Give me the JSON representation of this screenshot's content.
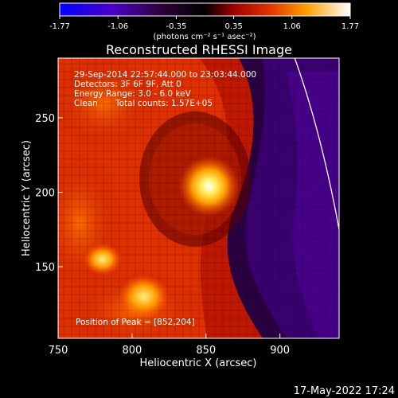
{
  "chart_data": {
    "type": "heatmap",
    "title": "Reconstructed RHESSI Image",
    "xlabel": "Heliocentric X (arcsec)",
    "ylabel": "Heliocentric Y (arcsec)",
    "xlim": [
      750,
      940
    ],
    "ylim": [
      102,
      290
    ],
    "x_ticks": [
      "750",
      "800",
      "850",
      "900"
    ],
    "y_ticks": [
      "150",
      "200",
      "250"
    ],
    "colorbar": {
      "tick_labels": [
        "-1.77",
        "-1.06",
        "-0.35",
        "0.35",
        "1.06",
        "1.77"
      ],
      "range": [
        -1.77,
        1.77
      ],
      "unit": "(photons cm⁻² s⁻¹ asec⁻²)"
    },
    "annotations": {
      "time": "29-Sep-2014 22:57:44.000 to 23:03:44.000",
      "detectors": "Detectors: 3F 6F 9F, Att 0",
      "energy": "Energy Range: 3.0 - 6.0 keV",
      "method": "Clean",
      "counts": "Total counts: 1.57E+05",
      "peak": "Position of Peak = [852,204]"
    },
    "peak": [
      852,
      204
    ],
    "secondary_sources": [
      [
        808,
        130
      ],
      [
        780,
        155
      ]
    ],
    "limb_curve": [
      [
        910,
        290
      ],
      [
        928,
        240
      ],
      [
        940,
        175
      ]
    ],
    "timestamp": "17-May-2022 17:24"
  }
}
